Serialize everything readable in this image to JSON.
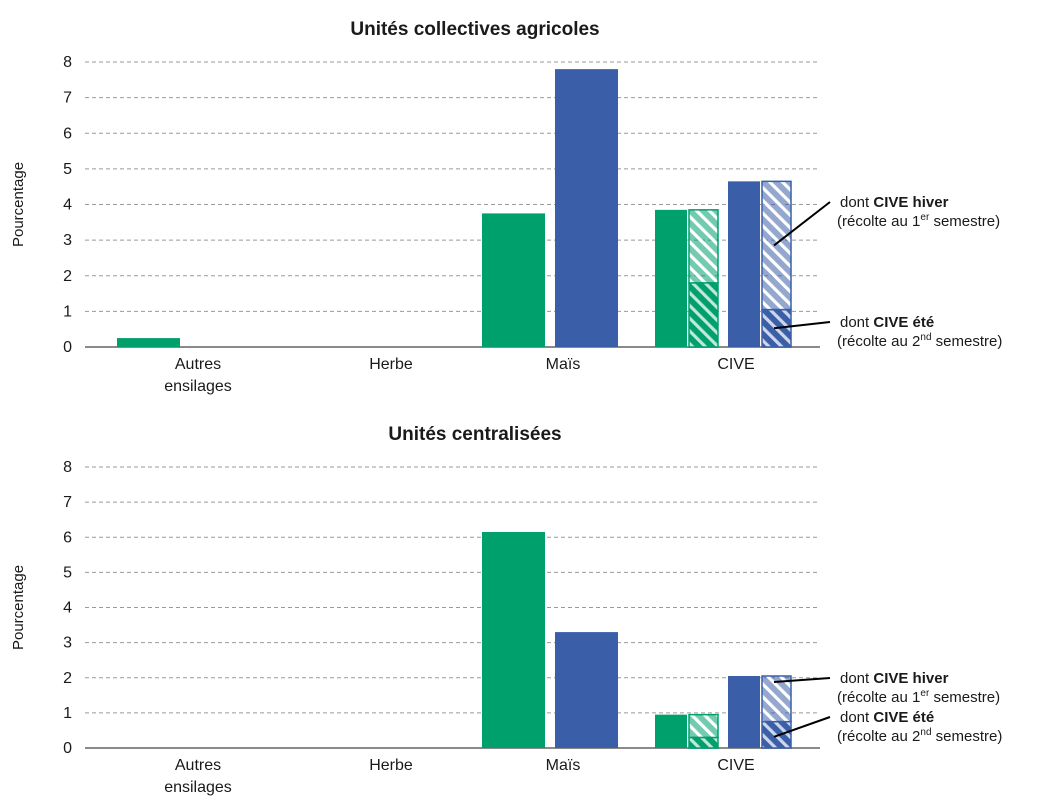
{
  "chart_data": [
    {
      "type": "bar",
      "title": "Unités collectives agricoles",
      "ylabel": "Pourcentage",
      "ylim": [
        0,
        8
      ],
      "yticks": [
        "0",
        "1",
        "2",
        "3",
        "4",
        "5",
        "6",
        "7",
        "8"
      ],
      "categories": [
        "Autres|ensilages",
        "Herbe",
        "Maïs",
        "CIVE"
      ],
      "colors": [
        "#00a06d",
        "#3a5fa8"
      ],
      "series": [
        {
          "values": [
            0.25,
            0,
            3.75,
            3.85
          ]
        },
        {
          "values": [
            0,
            0,
            7.8,
            4.65
          ]
        }
      ],
      "cive_breakdown": [
        {
          "ete": 1.8,
          "hiver": 2.05
        },
        {
          "ete": 1.05,
          "hiver": 3.6
        }
      ],
      "annotations": [
        {
          "pre": "dont ",
          "bold": "CIVE hiver",
          "line2_pre": "(récolte au 1",
          "sup": "er",
          "line2_post": " semestre)"
        },
        {
          "pre": "dont ",
          "bold": "CIVE été",
          "line2_pre": "(récolte au 2",
          "sup": "nd",
          "line2_post": " semestre)"
        }
      ]
    },
    {
      "type": "bar",
      "title": "Unités centralisées",
      "ylabel": "Pourcentage",
      "ylim": [
        0,
        8
      ],
      "yticks": [
        "0",
        "1",
        "2",
        "3",
        "4",
        "5",
        "6",
        "7",
        "8"
      ],
      "categories": [
        "Autres|ensilages",
        "Herbe",
        "Maïs",
        "CIVE"
      ],
      "colors": [
        "#00a06d",
        "#3a5fa8"
      ],
      "series": [
        {
          "values": [
            0,
            0,
            6.15,
            0.95
          ]
        },
        {
          "values": [
            0,
            0,
            3.3,
            2.05
          ]
        }
      ],
      "cive_breakdown": [
        {
          "ete": 0.3,
          "hiver": 0.65
        },
        {
          "ete": 0.75,
          "hiver": 1.3
        }
      ],
      "annotations": [
        {
          "pre": "dont ",
          "bold": "CIVE hiver",
          "line2_pre": "(récolte au 1",
          "sup": "er",
          "line2_post": " semestre)"
        },
        {
          "pre": "dont ",
          "bold": "CIVE été",
          "line2_pre": "(récolte au 2",
          "sup": "nd",
          "line2_post": " semestre)"
        }
      ]
    }
  ]
}
